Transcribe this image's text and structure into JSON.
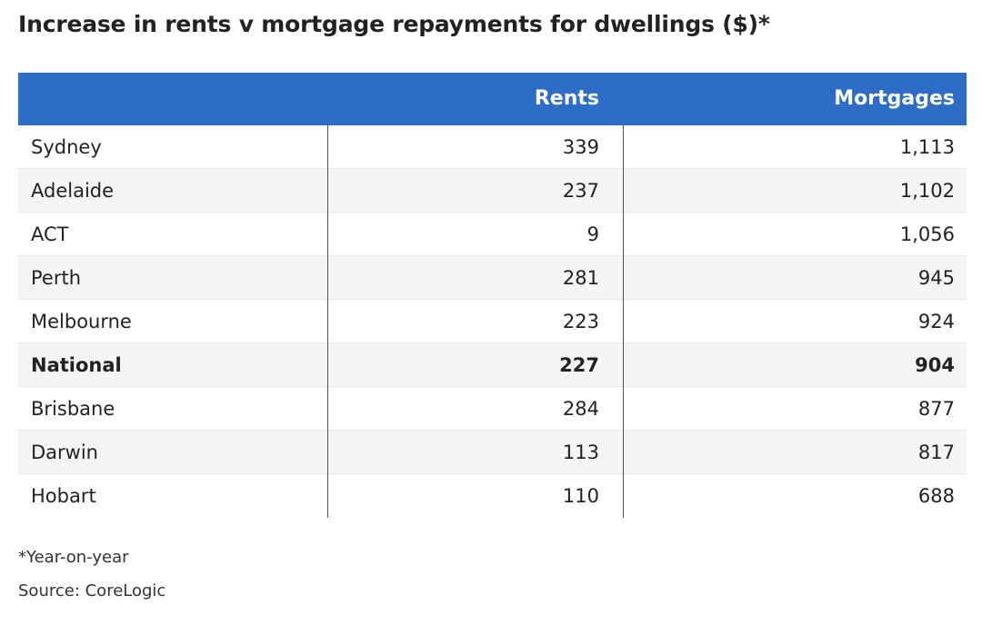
{
  "title": "Increase in rents v mortgage repayments for dwellings ($)*",
  "colors": {
    "header_bg": "#2d6cc7",
    "header_text": "#ffffff",
    "row_alt_bg": "#f5f5f5"
  },
  "footnotes": {
    "note": "*Year-on-year",
    "source": "Source: CoreLogic"
  },
  "chart_data": {
    "type": "table",
    "title": "Increase in rents v mortgage repayments for dwellings ($)*",
    "columns": [
      "",
      "Rents",
      "Mortgages"
    ],
    "rows": [
      {
        "name": "Sydney",
        "rents": "339",
        "mortgages": "1,113",
        "bold": false
      },
      {
        "name": "Adelaide",
        "rents": "237",
        "mortgages": "1,102",
        "bold": false
      },
      {
        "name": "ACT",
        "rents": "9",
        "mortgages": "1,056",
        "bold": false
      },
      {
        "name": "Perth",
        "rents": "281",
        "mortgages": "945",
        "bold": false
      },
      {
        "name": "Melbourne",
        "rents": "223",
        "mortgages": "924",
        "bold": false
      },
      {
        "name": "National",
        "rents": "227",
        "mortgages": "904",
        "bold": true
      },
      {
        "name": "Brisbane",
        "rents": "284",
        "mortgages": "877",
        "bold": false
      },
      {
        "name": "Darwin",
        "rents": "113",
        "mortgages": "817",
        "bold": false
      },
      {
        "name": "Hobart",
        "rents": "110",
        "mortgages": "688",
        "bold": false
      }
    ]
  }
}
